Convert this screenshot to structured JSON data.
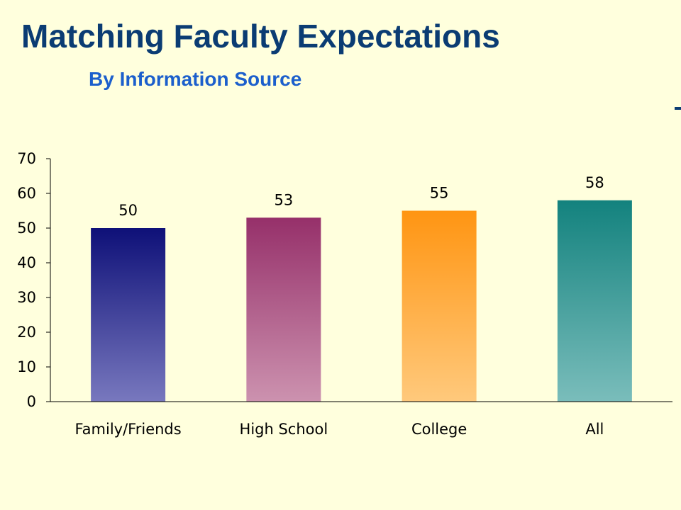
{
  "chart_data": {
    "type": "bar",
    "title": "Matching Faculty Expectations",
    "subtitle": "By Information Source",
    "categories": [
      "Family/Friends",
      "High School",
      "College",
      "All"
    ],
    "values": [
      50,
      53,
      55,
      58
    ],
    "data_labels": [
      "50",
      "53",
      "55",
      "58"
    ],
    "ylim": [
      0,
      70
    ],
    "yticks": [
      0,
      10,
      20,
      30,
      40,
      50,
      60,
      70
    ],
    "ytick_labels": [
      "0",
      "10",
      "20",
      "30",
      "40",
      "50",
      "60",
      "70"
    ],
    "grid": false,
    "legend": "none",
    "bar_colors": [
      {
        "top": "#0E1078",
        "bottom": "#7878BE"
      },
      {
        "top": "#96306A",
        "bottom": "#CC92AF"
      },
      {
        "top": "#FF9512",
        "bottom": "#FFC97C"
      },
      {
        "top": "#13827E",
        "bottom": "#7ABDBB"
      }
    ]
  },
  "colors": {
    "background": "#FFFFDD",
    "title": "#0B3C73",
    "subtitle": "#1C5FCC"
  }
}
